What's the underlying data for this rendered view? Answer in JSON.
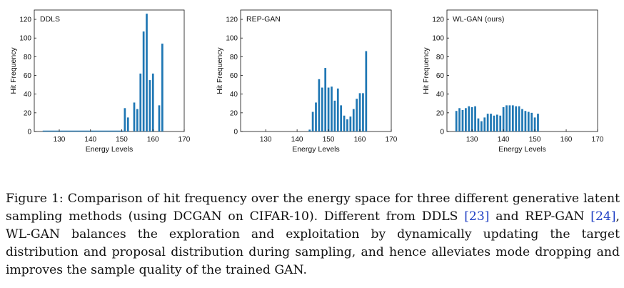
{
  "chart_data": [
    {
      "type": "bar",
      "title": "DDLS",
      "xlabel": "Energy Levels",
      "ylabel": "Hit Frequency",
      "xlim": [
        122,
        170
      ],
      "ylim": [
        0,
        130
      ],
      "xticks": [
        130,
        140,
        150,
        160,
        170
      ],
      "yticks": [
        0,
        20,
        40,
        60,
        80,
        100,
        120
      ],
      "x": [
        125,
        126,
        127,
        128,
        129,
        130,
        131,
        132,
        133,
        134,
        135,
        136,
        137,
        138,
        139,
        140,
        141,
        142,
        143,
        144,
        145,
        146,
        147,
        148,
        149,
        150,
        151,
        152,
        153,
        154,
        155,
        156,
        157,
        158,
        159,
        160,
        161,
        162,
        163,
        164,
        165,
        166,
        167
      ],
      "values": [
        0,
        0,
        0,
        0,
        0,
        0,
        0,
        0,
        0,
        0,
        0,
        0,
        0,
        0,
        0,
        0,
        0,
        0,
        0,
        0,
        0,
        0,
        0,
        0,
        0,
        0,
        0,
        0,
        0,
        0,
        0,
        0,
        0,
        0,
        0,
        0,
        0,
        0,
        0,
        0,
        0,
        0,
        0
      ],
      "bars": {
        "x": [
          151,
          152,
          154,
          155,
          156,
          157,
          158,
          159,
          160,
          162,
          163,
          164,
          165,
          166,
          167
        ],
        "values": [
          25,
          15,
          31,
          24,
          62,
          107,
          126,
          55,
          62,
          28,
          94,
          0,
          0,
          0,
          0
        ]
      },
      "grid": false
    },
    {
      "type": "bar",
      "title": "REP-GAN",
      "xlabel": "Energy Levels",
      "ylabel": "Hit Frequency",
      "xlim": [
        122,
        170
      ],
      "ylim": [
        0,
        130
      ],
      "xticks": [
        130,
        140,
        150,
        160,
        170
      ],
      "yticks": [
        0,
        20,
        40,
        60,
        80,
        100,
        120
      ],
      "bars": {
        "x": [
          144,
          145,
          146,
          147,
          148,
          149,
          150,
          151,
          152,
          153,
          154,
          155,
          156,
          157,
          158,
          159,
          160,
          161,
          162,
          163,
          164,
          165,
          166,
          167
        ],
        "values": [
          2,
          21,
          31,
          56,
          47,
          68,
          47,
          48,
          33,
          46,
          28,
          17,
          13,
          16,
          24,
          35,
          41,
          41,
          86,
          0,
          0,
          0,
          0,
          0
        ]
      },
      "grid": false
    },
    {
      "type": "bar",
      "title": "WL-GAN (ours)",
      "xlabel": "Energy Levels",
      "ylabel": "Hit Frequency",
      "xlim": [
        122,
        170
      ],
      "ylim": [
        0,
        130
      ],
      "xticks": [
        130,
        140,
        150,
        160,
        170
      ],
      "yticks": [
        0,
        20,
        40,
        60,
        80,
        100,
        120
      ],
      "bars": {
        "x": [
          125,
          126,
          127,
          128,
          129,
          130,
          131,
          132,
          133,
          134,
          135,
          136,
          137,
          138,
          139,
          140,
          141,
          142,
          143,
          144,
          145,
          146,
          147,
          148,
          149,
          150,
          151,
          152,
          153,
          154,
          155,
          156,
          157,
          158,
          159,
          160,
          161,
          162,
          163,
          164,
          165
        ],
        "values": [
          22,
          25,
          23,
          25,
          27,
          26,
          27,
          14,
          11,
          15,
          19,
          19,
          17,
          18,
          17,
          26,
          28,
          28,
          28,
          27,
          27,
          24,
          22,
          21,
          20,
          15,
          19,
          0,
          0,
          0,
          0,
          0,
          0,
          0,
          0,
          0,
          0,
          0,
          0,
          0,
          0
        ]
      },
      "grid": false
    }
  ],
  "caption": {
    "label": "Figure 1:",
    "text_1": " Comparison of hit frequency over the energy space for three different generative latent sampling methods (using DCGAN on CIFAR-10). Different from DDLS ",
    "cite_1": "[23]",
    "text_2": " and REP-GAN ",
    "cite_2": "[24]",
    "text_3": ", WL-GAN balances the exploration and exploitation by dynamically updating the target distribution and proposal distribution during sampling, and hence alleviates mode dropping and improves the sample quality of the trained GAN."
  },
  "colors": {
    "bar": "#1f77b4",
    "axis": "#111111"
  }
}
